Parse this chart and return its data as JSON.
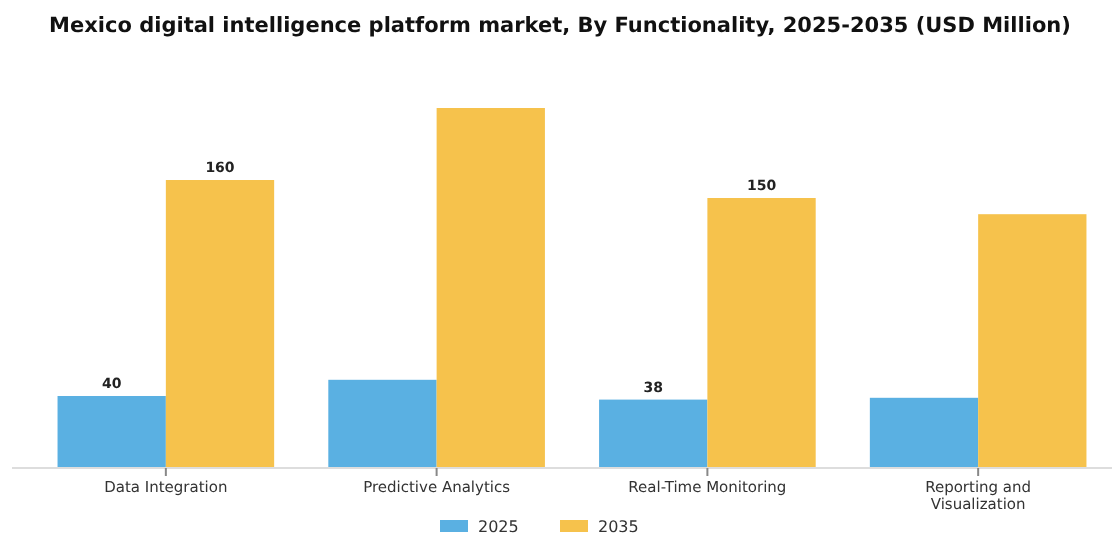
{
  "chart_data": {
    "type": "bar",
    "title": "Mexico digital intelligence platform market, By Functionality, 2025-2035 (USD Million)",
    "categories": [
      "Data Integration",
      "Predictive Analytics",
      "Real-Time Monitoring",
      "Reporting and Visualization"
    ],
    "series": [
      {
        "name": "2025",
        "color": "#5ab0e2",
        "values": [
          40,
          49,
          38,
          39
        ],
        "value_labels": [
          "40",
          null,
          "38",
          null
        ]
      },
      {
        "name": "2035",
        "color": "#f6c24c",
        "values": [
          160,
          200,
          150,
          141
        ],
        "value_labels": [
          "160",
          null,
          "150",
          null
        ]
      }
    ],
    "legend": "bottom",
    "grid": false
  }
}
